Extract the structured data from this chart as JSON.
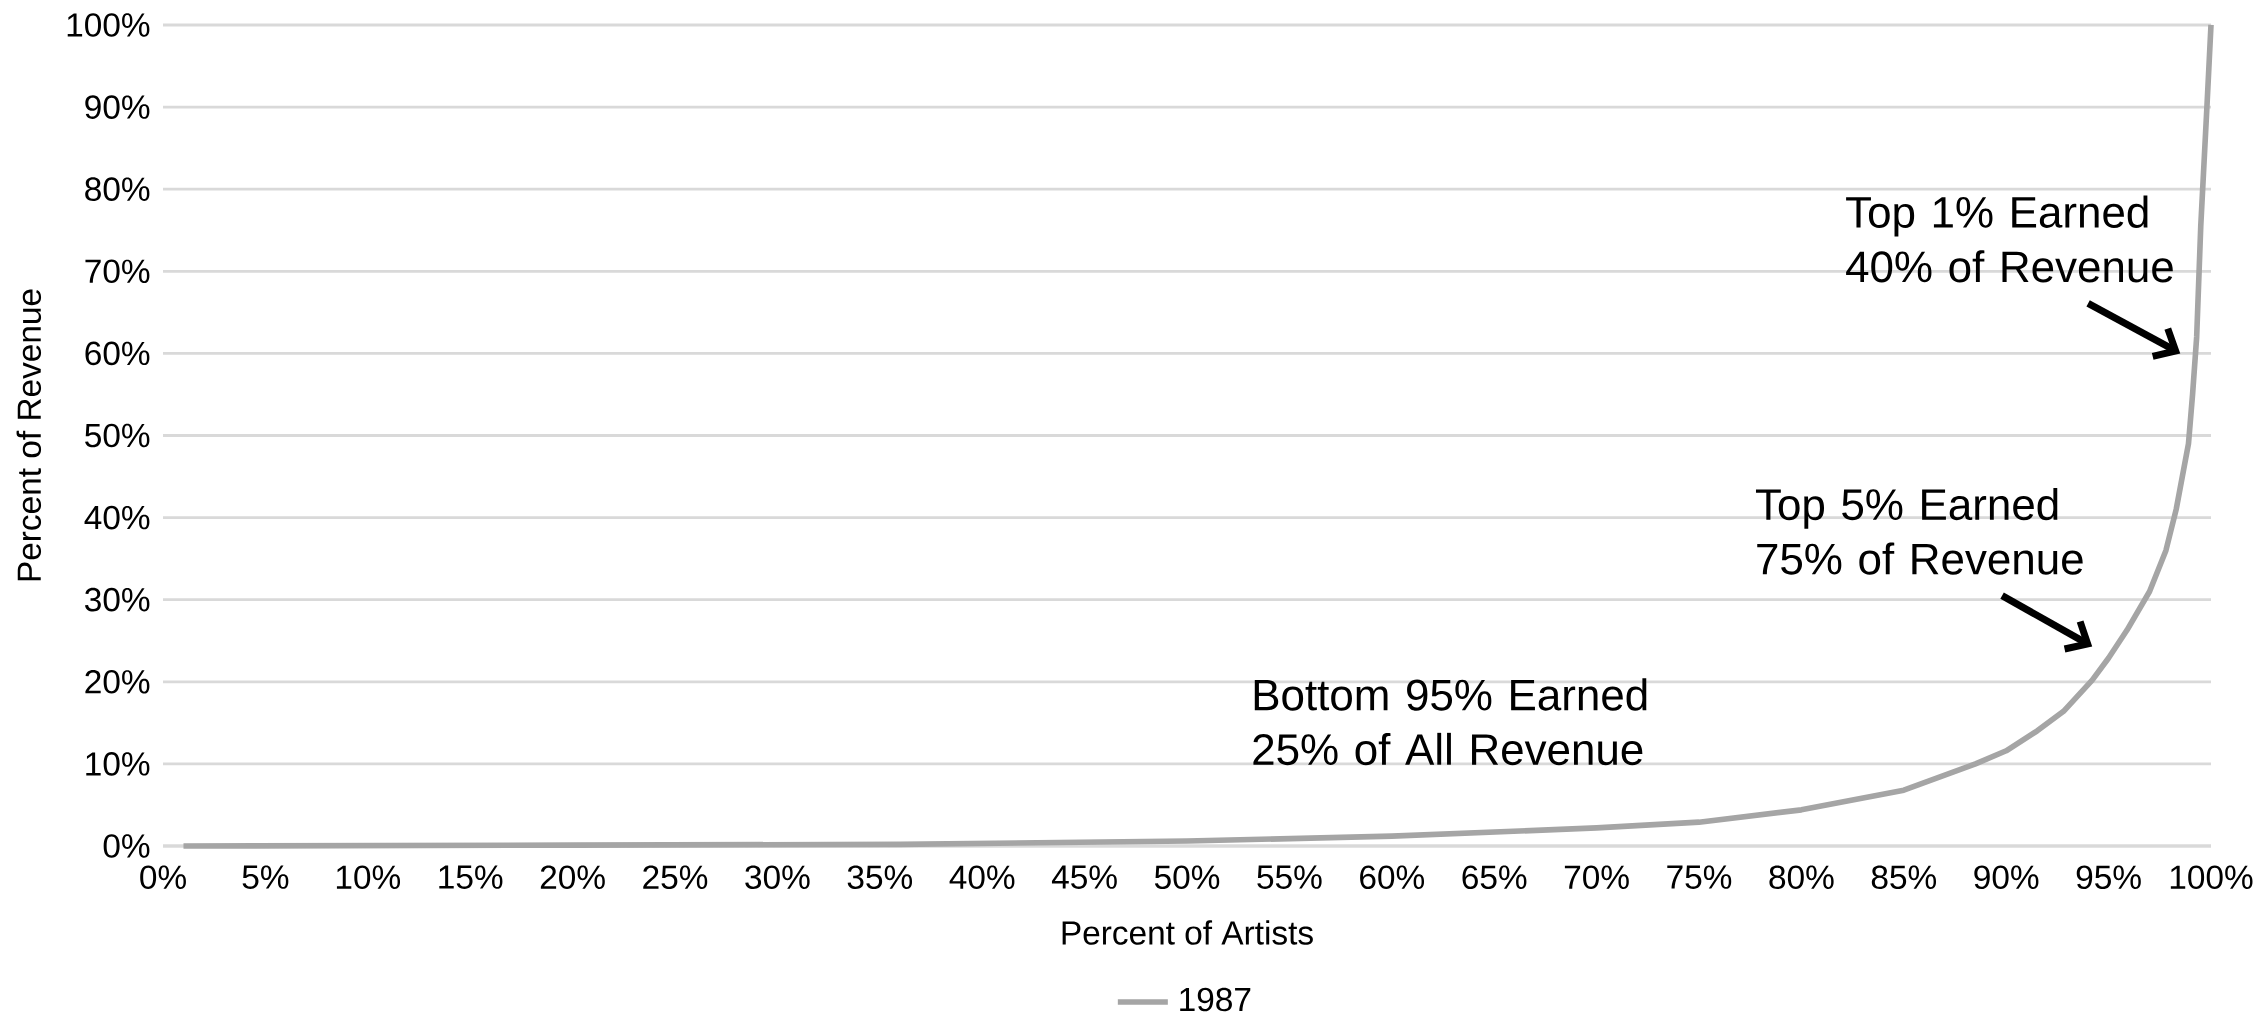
{
  "chart_data": {
    "type": "line",
    "xlabel": "Percent of Artists",
    "ylabel": "Percent of Revenue",
    "xlim": [
      0,
      100
    ],
    "ylim": [
      0,
      100
    ],
    "xticks": [
      {
        "value": 0,
        "label": "0%"
      },
      {
        "value": 5,
        "label": "5%"
      },
      {
        "value": 10,
        "label": "10%"
      },
      {
        "value": 15,
        "label": "15%"
      },
      {
        "value": 20,
        "label": "20%"
      },
      {
        "value": 25,
        "label": "25%"
      },
      {
        "value": 30,
        "label": "30%"
      },
      {
        "value": 35,
        "label": "35%"
      },
      {
        "value": 40,
        "label": "40%"
      },
      {
        "value": 45,
        "label": "45%"
      },
      {
        "value": 50,
        "label": "50%"
      },
      {
        "value": 55,
        "label": "55%"
      },
      {
        "value": 60,
        "label": "60%"
      },
      {
        "value": 65,
        "label": "65%"
      },
      {
        "value": 70,
        "label": "70%"
      },
      {
        "value": 75,
        "label": "75%"
      },
      {
        "value": 80,
        "label": "80%"
      },
      {
        "value": 85,
        "label": "85%"
      },
      {
        "value": 90,
        "label": "90%"
      },
      {
        "value": 95,
        "label": "95%"
      },
      {
        "value": 100,
        "label": "100%"
      }
    ],
    "yticks": [
      {
        "value": 0,
        "label": "0%"
      },
      {
        "value": 10,
        "label": "10%"
      },
      {
        "value": 20,
        "label": "20%"
      },
      {
        "value": 30,
        "label": "30%"
      },
      {
        "value": 40,
        "label": "40%"
      },
      {
        "value": 50,
        "label": "50%"
      },
      {
        "value": 60,
        "label": "60%"
      },
      {
        "value": 70,
        "label": "70%"
      },
      {
        "value": 80,
        "label": "80%"
      },
      {
        "value": 90,
        "label": "90%"
      },
      {
        "value": 100,
        "label": "100%"
      }
    ],
    "grid": "y",
    "legend": "bottom",
    "marker": "none",
    "line_style": "solid",
    "series": [
      {
        "name": "1987",
        "color": "#a5a5a5",
        "x": [
          1,
          20,
          36,
          50,
          60,
          70,
          75,
          80,
          85,
          88.5,
          90,
          91.5,
          92.8,
          94.2,
          95,
          95.9,
          97,
          97.8,
          98.3,
          98.9,
          99.1,
          99.3,
          99.5,
          99.8,
          100
        ],
        "values": [
          0,
          0.1,
          0.2,
          0.6,
          1.2,
          2.2,
          2.9,
          4.4,
          6.8,
          10,
          11.6,
          14,
          16.4,
          20.2,
          22.9,
          26.3,
          31,
          36,
          41,
          49,
          55,
          62,
          75.5,
          90,
          100
        ]
      }
    ],
    "annotations": [
      "Top 1% Earned 40% of Revenue",
      "Top 5% Earned 75% of Revenue",
      "Bottom 95% Earned 25% of All Revenue"
    ]
  }
}
